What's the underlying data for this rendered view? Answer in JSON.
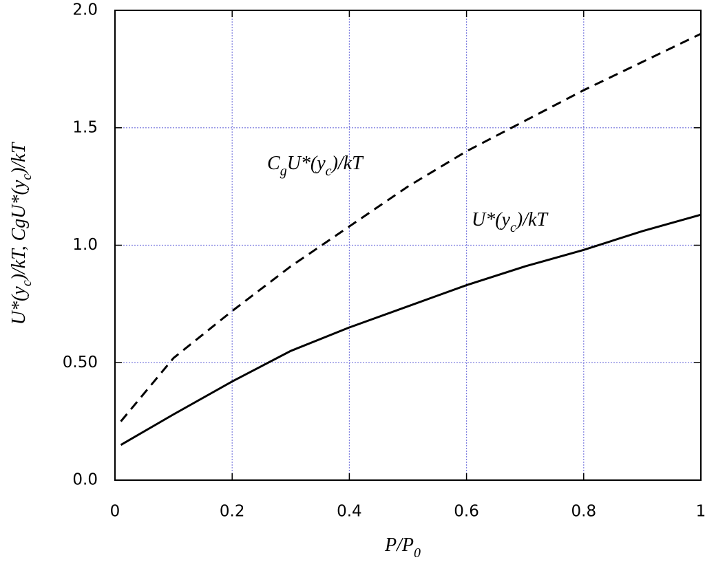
{
  "chart_data": {
    "type": "line",
    "x": [
      0.01,
      0.1,
      0.2,
      0.3,
      0.4,
      0.5,
      0.6,
      0.7,
      0.8,
      0.9,
      1.0
    ],
    "series": [
      {
        "color": "#000000",
        "dash": false,
        "values": [
          0.15,
          0.28,
          0.42,
          0.55,
          0.65,
          0.74,
          0.83,
          0.91,
          0.98,
          1.06,
          1.13
        ]
      },
      {
        "color": "#000000",
        "dash": true,
        "values": [
          0.25,
          0.52,
          0.72,
          0.91,
          1.08,
          1.25,
          1.4,
          1.53,
          1.66,
          1.78,
          1.9
        ]
      }
    ],
    "xlim": [
      0,
      1
    ],
    "ylim": [
      0,
      2
    ],
    "xticks": [
      0,
      0.2,
      0.4,
      0.6,
      0.8,
      1
    ],
    "yticks": [
      {
        "value": 0,
        "label": "0.0"
      },
      {
        "value": 0.5,
        "label": "0.50"
      },
      {
        "value": 1,
        "label": "1.0"
      },
      {
        "value": 1.5,
        "label": "1.5"
      },
      {
        "value": 2,
        "label": "2.0"
      }
    ],
    "grid": true,
    "grid_color": "#8080e0",
    "xlabel": [
      "P/P",
      "0"
    ],
    "ylabel": [
      "U*(y",
      "c",
      ")/kT, CgU*(y",
      "c",
      ")/kT"
    ],
    "annotations": [
      {
        "text": [
          "C",
          "g",
          "U*(y",
          "c",
          ")/kT"
        ]
      },
      {
        "text": [
          "U*(y",
          "c",
          ")/kT"
        ]
      }
    ]
  }
}
